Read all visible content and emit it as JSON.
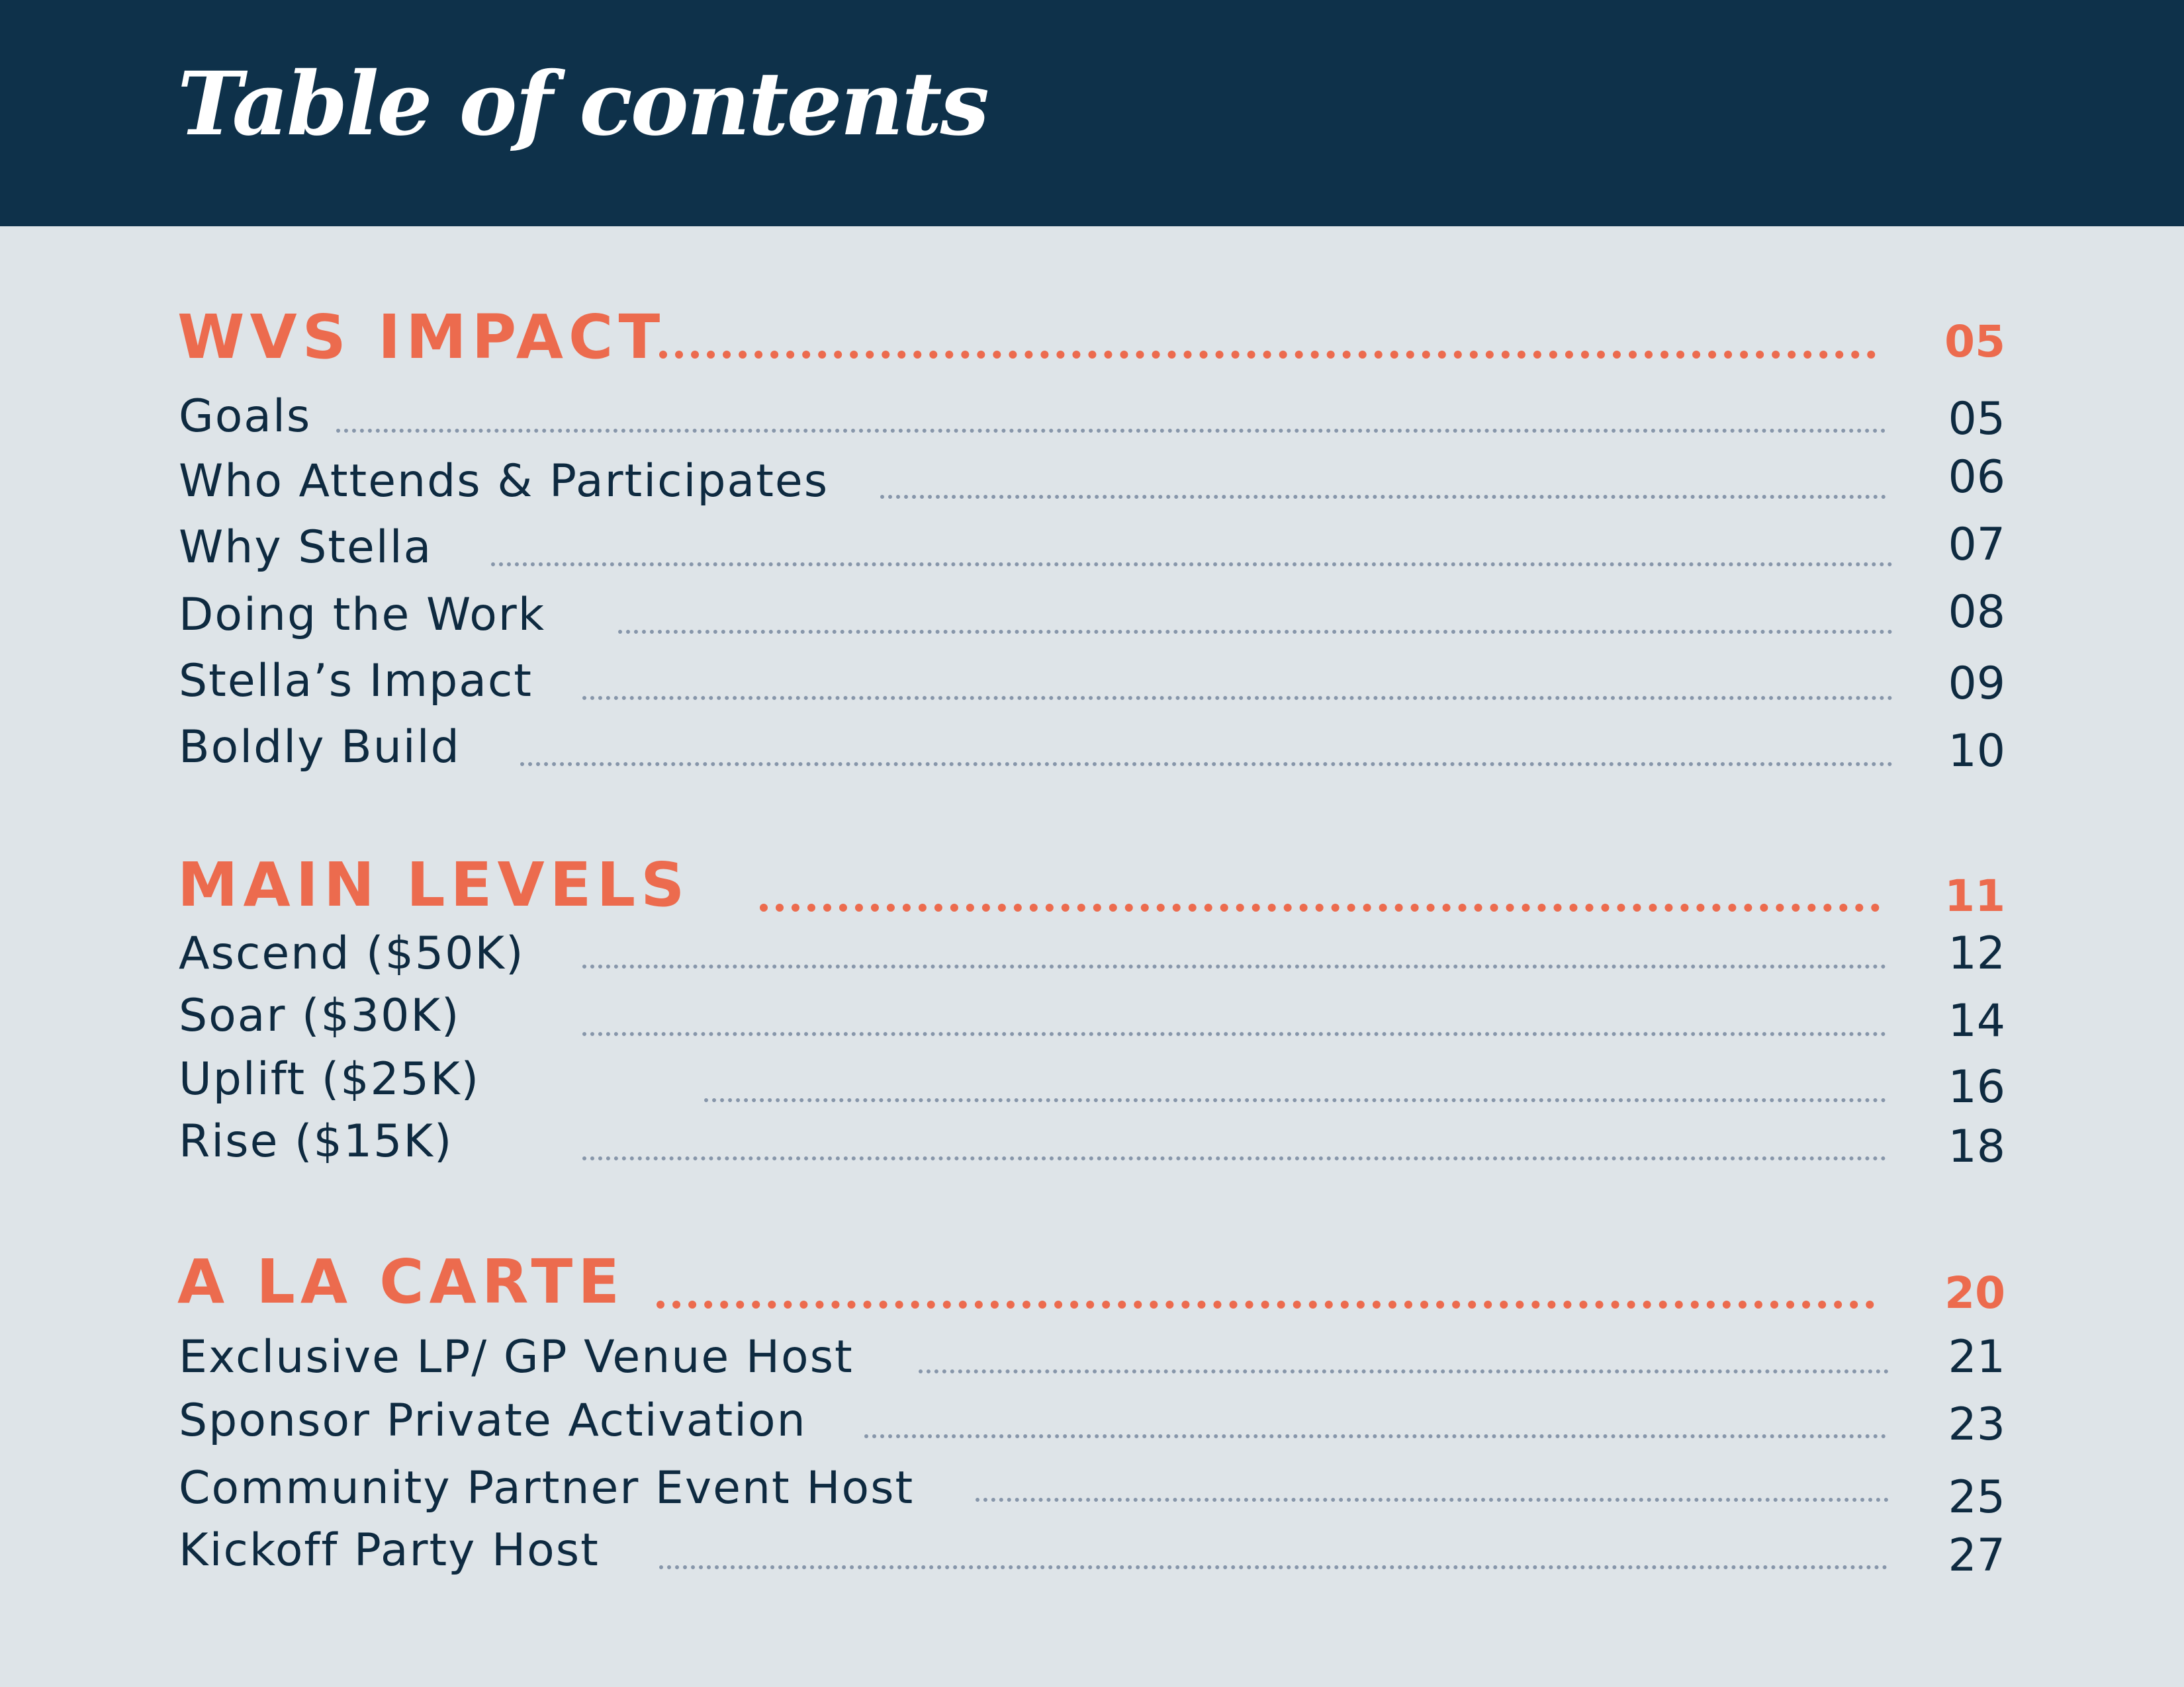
{
  "title": "Table of contents",
  "sections": [
    {
      "heading": "WVS IMPACT",
      "page": "05",
      "entries": [
        {
          "label": "Goals",
          "page": "05"
        },
        {
          "label": "Who Attends & Participates",
          "page": "06"
        },
        {
          "label": "Why Stella",
          "page": "07"
        },
        {
          "label": "Doing the Work",
          "page": "08"
        },
        {
          "label": "Stella’s Impact",
          "page": "09"
        },
        {
          "label": "Boldly Build",
          "page": "10"
        }
      ]
    },
    {
      "heading": "MAIN LEVELS",
      "page": "11",
      "entries": [
        {
          "label": "Ascend ($50K)",
          "page": "12"
        },
        {
          "label": "Soar ($30K)",
          "page": "14"
        },
        {
          "label": "Uplift ($25K)",
          "page": "16"
        },
        {
          "label": "Rise ($15K)",
          "page": "18"
        }
      ]
    },
    {
      "heading": "A LA CARTE",
      "page": "20",
      "entries": [
        {
          "label": "Exclusive LP/ GP Venue Host",
          "page": "21"
        },
        {
          "label": "Sponsor Private Activation",
          "page": "23"
        },
        {
          "label": "Community Partner Event Host",
          "page": "25"
        },
        {
          "label": "Kickoff Party Host",
          "page": "27"
        }
      ]
    }
  ],
  "colors": {
    "header_band": "#0e314a",
    "background": "#dee4e8",
    "accent": "#ec6b4e",
    "text": "#0e2a40",
    "leader": "#8796aa"
  }
}
